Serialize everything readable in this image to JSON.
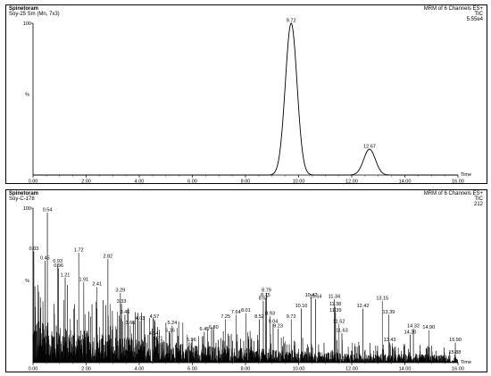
{
  "chart_data": [
    {
      "type": "line",
      "title": "Spinetoram",
      "subtitle": "Soy-25 Sm (Mn, 7x3)",
      "header_right": [
        "MRM of 6 Channels ES+",
        "TIC",
        "5.55e4"
      ],
      "xlabel": "Time",
      "ylabel": "%",
      "xlim": [
        0,
        16
      ],
      "ylim": [
        0,
        100
      ],
      "x_ticks": [
        "0.00",
        "2.00",
        "4.00",
        "6.00",
        "8.00",
        "10.00",
        "12.00",
        "14.00",
        "16.00"
      ],
      "y_ticks": [
        "100"
      ],
      "peaks": [
        {
          "x": 9.72,
          "y": 100,
          "label": "9.72"
        },
        {
          "x": 12.67,
          "y": 17,
          "label": "12.67"
        }
      ]
    },
    {
      "type": "line",
      "title": "Spinetoram",
      "subtitle": "Soy-C-178",
      "header_right": [
        "MRM of 6 Channels ES+",
        "TIC",
        "212"
      ],
      "xlabel": "Time",
      "ylabel": "%",
      "xlim": [
        0,
        16
      ],
      "ylim": [
        0,
        100
      ],
      "x_ticks": [
        "0.00",
        "2.00",
        "4.00",
        "6.00",
        "8.00",
        "10.00",
        "12.00",
        "14.00",
        "16.00"
      ],
      "y_ticks": [
        "100"
      ],
      "peaks": [
        {
          "x": 0.54,
          "y": 97,
          "label": "0.54"
        },
        {
          "x": 0.03,
          "y": 72,
          "label": "0.03"
        },
        {
          "x": 0.45,
          "y": 66,
          "label": "0.45"
        },
        {
          "x": 0.93,
          "y": 64,
          "label": "0.93"
        },
        {
          "x": 1.72,
          "y": 71,
          "label": "1.72"
        },
        {
          "x": 0.96,
          "y": 61,
          "label": "0.96"
        },
        {
          "x": 1.21,
          "y": 55,
          "label": "1.21"
        },
        {
          "x": 2.82,
          "y": 67,
          "label": "2.82"
        },
        {
          "x": 1.91,
          "y": 52,
          "label": "1.91"
        },
        {
          "x": 2.41,
          "y": 49,
          "label": "2.41"
        },
        {
          "x": 3.29,
          "y": 45,
          "label": "3.29"
        },
        {
          "x": 3.33,
          "y": 38,
          "label": "3.33"
        },
        {
          "x": 3.46,
          "y": 31,
          "label": "3.46"
        },
        {
          "x": 3.66,
          "y": 24,
          "label": "3.66"
        },
        {
          "x": 4.03,
          "y": 27,
          "label": "4.03"
        },
        {
          "x": 4.57,
          "y": 28,
          "label": "4.57"
        },
        {
          "x": 4.54,
          "y": 17,
          "label": "4.54"
        },
        {
          "x": 5.24,
          "y": 24,
          "label": "5.24"
        },
        {
          "x": 5.16,
          "y": 19,
          "label": "5.16"
        },
        {
          "x": 4.71,
          "y": 14,
          "label": "4.71"
        },
        {
          "x": 5.96,
          "y": 13,
          "label": "5.96"
        },
        {
          "x": 6.45,
          "y": 20,
          "label": "6.45"
        },
        {
          "x": 6.8,
          "y": 21,
          "label": "6.80"
        },
        {
          "x": 7.25,
          "y": 28,
          "label": "7.25"
        },
        {
          "x": 7.64,
          "y": 31,
          "label": "7.64"
        },
        {
          "x": 8.01,
          "y": 32,
          "label": "8.01"
        },
        {
          "x": 8.52,
          "y": 28,
          "label": "8.52"
        },
        {
          "x": 8.67,
          "y": 40,
          "label": "8.67"
        },
        {
          "x": 8.79,
          "y": 45,
          "label": "8.79"
        },
        {
          "x": 8.75,
          "y": 42,
          "label": "8.75"
        },
        {
          "x": 8.93,
          "y": 30,
          "label": "8.93"
        },
        {
          "x": 9.04,
          "y": 25,
          "label": "9.04"
        },
        {
          "x": 9.23,
          "y": 22,
          "label": "9.23"
        },
        {
          "x": 9.72,
          "y": 28,
          "label": "9.72"
        },
        {
          "x": 10.1,
          "y": 35,
          "label": "10.10"
        },
        {
          "x": 10.47,
          "y": 42,
          "label": "10.47"
        },
        {
          "x": 10.64,
          "y": 41,
          "label": "10.64"
        },
        {
          "x": 11.34,
          "y": 41,
          "label": "11.34"
        },
        {
          "x": 11.38,
          "y": 36,
          "label": "11.38"
        },
        {
          "x": 11.39,
          "y": 32,
          "label": "11.39"
        },
        {
          "x": 11.52,
          "y": 25,
          "label": "11.52"
        },
        {
          "x": 11.63,
          "y": 19,
          "label": "11.63"
        },
        {
          "x": 12.42,
          "y": 35,
          "label": "12.42"
        },
        {
          "x": 13.15,
          "y": 40,
          "label": "13.15"
        },
        {
          "x": 13.39,
          "y": 31,
          "label": "13.39"
        },
        {
          "x": 13.43,
          "y": 13,
          "label": "13.43"
        },
        {
          "x": 14.2,
          "y": 18,
          "label": "14.20"
        },
        {
          "x": 14.32,
          "y": 22,
          "label": "14.32"
        },
        {
          "x": 14.9,
          "y": 21,
          "label": "14.90"
        },
        {
          "x": 15.9,
          "y": 13,
          "label": "15.90"
        },
        {
          "x": 15.88,
          "y": 5,
          "label": "15.88"
        }
      ]
    }
  ]
}
